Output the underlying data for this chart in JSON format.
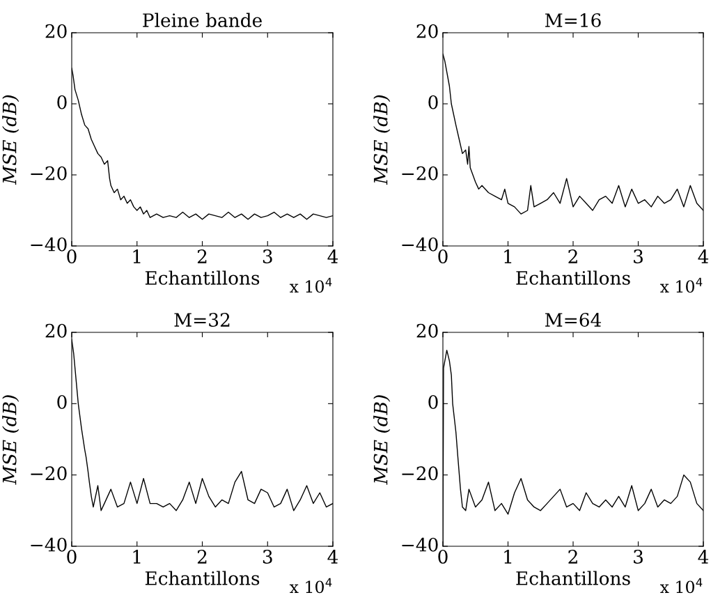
{
  "chart_data": [
    {
      "type": "line",
      "title": "Pleine bande",
      "xlabel": "Echantillons",
      "ylabel": "MSE (dB)",
      "annotations": [
        "x 10$^{4}$"
      ],
      "xlim": [
        0,
        4
      ],
      "ylim": [
        -40,
        20
      ],
      "xticks": [
        0,
        1,
        2,
        3,
        4
      ],
      "yticks": [
        -40,
        -20,
        0,
        20
      ],
      "x": [
        0,
        0.02,
        0.05,
        0.1,
        0.15,
        0.2,
        0.25,
        0.3,
        0.35,
        0.4,
        0.45,
        0.5,
        0.55,
        0.58,
        0.6,
        0.65,
        0.7,
        0.75,
        0.8,
        0.85,
        0.9,
        0.95,
        1.0,
        1.05,
        1.1,
        1.15,
        1.2,
        1.3,
        1.4,
        1.5,
        1.6,
        1.7,
        1.8,
        1.9,
        2.0,
        2.1,
        2.2,
        2.3,
        2.4,
        2.5,
        2.6,
        2.7,
        2.8,
        2.9,
        3.0,
        3.1,
        3.2,
        3.3,
        3.4,
        3.5,
        3.6,
        3.7,
        3.8,
        3.9,
        4.0
      ],
      "series": [
        {
          "color": "#000000",
          "values": [
            10,
            8,
            4,
            1,
            -3,
            -6,
            -7,
            -10,
            -12,
            -14,
            -15,
            -17,
            -16,
            -21,
            -23,
            -25,
            -24,
            -27,
            -26,
            -28,
            -27,
            -29,
            -30,
            -29,
            -31,
            -30,
            -32,
            -31,
            -32,
            -31.5,
            -32,
            -30.5,
            -32,
            -31,
            -32.5,
            -31,
            -31.5,
            -32,
            -30.5,
            -32,
            -31,
            -32.5,
            -31,
            -32,
            -31.5,
            -30.5,
            -32,
            -31,
            -32,
            -31,
            -32.5,
            -31,
            -31.5,
            -32,
            -31.5
          ]
        }
      ]
    },
    {
      "type": "line",
      "title": "M=16",
      "xlabel": "Echantillons",
      "ylabel": "MSE (dB)",
      "annotations": [
        "x 10$^{4}$"
      ],
      "xlim": [
        0,
        4
      ],
      "ylim": [
        -40,
        20
      ],
      "xticks": [
        0,
        1,
        2,
        3,
        4
      ],
      "yticks": [
        -40,
        -20,
        0,
        20
      ],
      "x": [
        0,
        0.03,
        0.1,
        0.13,
        0.2,
        0.25,
        0.3,
        0.35,
        0.38,
        0.4,
        0.42,
        0.5,
        0.55,
        0.6,
        0.7,
        0.8,
        0.9,
        0.95,
        1.0,
        1.1,
        1.2,
        1.3,
        1.35,
        1.4,
        1.5,
        1.6,
        1.7,
        1.8,
        1.9,
        2.0,
        2.1,
        2.2,
        2.3,
        2.4,
        2.5,
        2.6,
        2.7,
        2.8,
        2.9,
        3.0,
        3.1,
        3.2,
        3.3,
        3.4,
        3.5,
        3.6,
        3.7,
        3.8,
        3.9,
        4.0
      ],
      "series": [
        {
          "color": "#000000",
          "values": [
            14,
            12,
            5,
            0,
            -6,
            -10,
            -14,
            -13,
            -17,
            -12,
            -18,
            -22,
            -24,
            -23,
            -25,
            -26,
            -27,
            -24,
            -28,
            -29,
            -31,
            -30,
            -23,
            -29,
            -28,
            -27,
            -25,
            -28,
            -21,
            -29,
            -26,
            -28,
            -30,
            -27,
            -26,
            -28,
            -23,
            -29,
            -24,
            -28,
            -27,
            -29,
            -26,
            -28,
            -27,
            -24,
            -29,
            -23,
            -28,
            -30
          ]
        }
      ]
    },
    {
      "type": "line",
      "title": "M=32",
      "xlabel": "Echantillons",
      "ylabel": "MSE (dB)",
      "annotations": [
        "x 10$^{4}$"
      ],
      "xlim": [
        0,
        4
      ],
      "ylim": [
        -40,
        20
      ],
      "xticks": [
        0,
        1,
        2,
        3,
        4
      ],
      "yticks": [
        -40,
        -20,
        0,
        20
      ],
      "x": [
        0,
        0.03,
        0.07,
        0.1,
        0.15,
        0.2,
        0.22,
        0.25,
        0.27,
        0.3,
        0.33,
        0.4,
        0.45,
        0.5,
        0.6,
        0.7,
        0.8,
        0.9,
        1.0,
        1.1,
        1.2,
        1.3,
        1.4,
        1.5,
        1.6,
        1.7,
        1.8,
        1.9,
        2.0,
        2.1,
        2.2,
        2.3,
        2.4,
        2.5,
        2.6,
        2.7,
        2.8,
        2.9,
        3.0,
        3.1,
        3.2,
        3.3,
        3.4,
        3.5,
        3.6,
        3.7,
        3.8,
        3.9,
        4.0
      ],
      "series": [
        {
          "color": "#000000",
          "values": [
            18,
            14,
            6,
            0,
            -7,
            -13,
            -15,
            -19,
            -22,
            -26,
            -29,
            -23,
            -30,
            -28,
            -24,
            -29,
            -28,
            -22,
            -28,
            -21,
            -28,
            -28,
            -29,
            -28,
            -30,
            -27,
            -22,
            -28,
            -21,
            -26,
            -29,
            -27,
            -28,
            -22,
            -19,
            -27,
            -28,
            -24,
            -25,
            -29,
            -28,
            -24,
            -30,
            -27,
            -23,
            -28,
            -25,
            -29,
            -28
          ]
        }
      ]
    },
    {
      "type": "line",
      "title": "M=64",
      "xlabel": "Echantillons",
      "ylabel": "MSE (dB)",
      "annotations": [
        "x 10$^{4}$"
      ],
      "xlim": [
        0,
        4
      ],
      "ylim": [
        -40,
        20
      ],
      "xticks": [
        0,
        1,
        2,
        3,
        4
      ],
      "yticks": [
        -40,
        -20,
        0,
        20
      ],
      "x": [
        0,
        0.01,
        0.04,
        0.06,
        0.1,
        0.13,
        0.15,
        0.2,
        0.23,
        0.27,
        0.3,
        0.35,
        0.4,
        0.5,
        0.6,
        0.7,
        0.8,
        0.9,
        1.0,
        1.1,
        1.2,
        1.3,
        1.4,
        1.5,
        1.6,
        1.7,
        1.8,
        1.9,
        2.0,
        2.1,
        2.2,
        2.3,
        2.4,
        2.5,
        2.6,
        2.7,
        2.8,
        2.9,
        3.0,
        3.1,
        3.2,
        3.3,
        3.4,
        3.5,
        3.6,
        3.7,
        3.8,
        3.9,
        4.0
      ],
      "series": [
        {
          "color": "#000000",
          "values": [
            -40,
            10,
            13,
            15,
            12,
            8,
            0,
            -8,
            -15,
            -24,
            -29,
            -30,
            -24,
            -29,
            -27,
            -22,
            -30,
            -28,
            -31,
            -25,
            -21,
            -27,
            -29,
            -30,
            -28,
            -26,
            -24,
            -29,
            -28,
            -30,
            -25,
            -28,
            -29,
            -27,
            -29,
            -26,
            -29,
            -23,
            -30,
            -28,
            -24,
            -29,
            -27,
            -28,
            -26,
            -20,
            -22,
            -28,
            -30
          ]
        }
      ]
    }
  ]
}
